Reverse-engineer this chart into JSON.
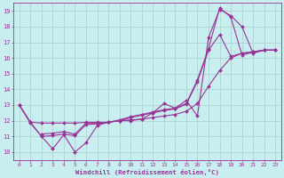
{
  "background_color": "#c8eef0",
  "grid_color": "#aacccc",
  "line_color": "#993399",
  "xlabel": "Windchill (Refroidissement éolien,°C)",
  "xlim": [
    -0.5,
    23.5
  ],
  "ylim": [
    9.5,
    19.5
  ],
  "xticks": [
    0,
    1,
    2,
    3,
    4,
    5,
    6,
    7,
    8,
    9,
    10,
    11,
    12,
    13,
    14,
    15,
    16,
    17,
    18,
    19,
    20,
    21,
    22,
    23
  ],
  "yticks": [
    10,
    11,
    12,
    13,
    14,
    15,
    16,
    17,
    18,
    19
  ],
  "lines": [
    {
      "x": [
        0,
        1,
        2,
        3,
        4,
        5,
        6,
        7,
        8,
        9,
        10,
        11,
        12,
        13,
        14,
        15,
        16,
        17,
        18,
        19,
        20,
        21,
        22,
        23
      ],
      "y": [
        13.0,
        11.9,
        11.85,
        11.85,
        11.85,
        11.85,
        11.9,
        11.9,
        11.9,
        12.0,
        12.05,
        12.1,
        12.2,
        12.3,
        12.4,
        12.6,
        13.1,
        14.2,
        15.2,
        16.0,
        16.3,
        16.4,
        16.5,
        16.5
      ]
    },
    {
      "x": [
        0,
        1,
        2,
        3,
        4,
        5,
        6,
        7,
        8,
        9,
        10,
        11,
        12,
        13,
        14,
        15,
        16,
        17,
        18,
        19,
        20,
        21,
        22,
        23
      ],
      "y": [
        13.0,
        11.9,
        11.0,
        10.2,
        11.1,
        10.0,
        10.6,
        11.7,
        11.9,
        12.0,
        12.0,
        12.1,
        12.5,
        13.1,
        12.8,
        13.3,
        12.3,
        17.3,
        19.1,
        18.7,
        18.0,
        16.3,
        16.5,
        16.5
      ]
    },
    {
      "x": [
        0,
        1,
        2,
        3,
        4,
        5,
        6,
        7,
        8,
        9,
        10,
        11,
        12,
        13,
        14,
        15,
        16,
        17,
        18,
        19,
        20,
        21,
        22,
        23
      ],
      "y": [
        13.0,
        11.85,
        11.0,
        11.05,
        11.15,
        11.05,
        11.75,
        11.8,
        11.9,
        12.0,
        12.2,
        12.35,
        12.5,
        12.65,
        12.75,
        13.05,
        14.5,
        16.5,
        17.5,
        16.1,
        16.3,
        16.4,
        16.5,
        16.5
      ]
    },
    {
      "x": [
        2,
        3,
        4,
        5,
        6,
        7,
        8,
        9,
        10,
        11,
        12,
        13,
        14,
        15,
        16,
        17,
        18,
        19,
        20,
        21,
        22,
        23
      ],
      "y": [
        11.15,
        11.2,
        11.3,
        11.15,
        11.85,
        11.85,
        11.9,
        12.05,
        12.25,
        12.4,
        12.55,
        12.7,
        12.8,
        13.1,
        14.6,
        16.6,
        19.2,
        18.6,
        16.2,
        16.35,
        16.5,
        16.5
      ]
    }
  ]
}
